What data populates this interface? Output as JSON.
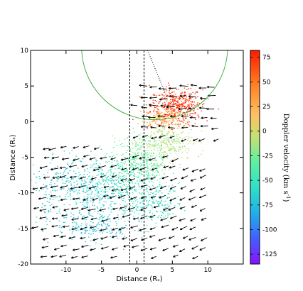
{
  "chart_data": {
    "type": "scatter",
    "xlabel": "Distance (R",
    "xlabel_sub": "*",
    "xlabel_close": ")",
    "ylabel": "Distance (R",
    "ylabel_sub": "*",
    "ylabel_close": ")",
    "xlim": [
      -15,
      15
    ],
    "ylim": [
      -20,
      10
    ],
    "xticks": [
      -10,
      -5,
      0,
      5,
      10
    ],
    "yticks": [
      -20,
      -15,
      -10,
      -5,
      0,
      5,
      10
    ],
    "colorbar": {
      "label": "Doppler velocity (km s",
      "label_sup": "-1",
      "label_close": ")",
      "min": -135,
      "max": 82,
      "ticks": [
        75,
        50,
        25,
        0,
        -25,
        -50,
        -75,
        -100,
        -125
      ]
    },
    "vertical_dashed_lines_x": [
      -1,
      1
    ],
    "circle": {
      "cx": 2.5,
      "cy": 10.5,
      "r": 10.3,
      "color": "#3aa63a"
    },
    "dotted_line": {
      "x": [
        1.5,
        4.2
      ],
      "y": [
        10,
        3.5
      ]
    },
    "emission_regions": [
      {
        "cx": 5.5,
        "cy": 2.3,
        "rx": 3.3,
        "ry": 2.3,
        "velocity": 75,
        "n": 420
      },
      {
        "cx": 3.5,
        "cy": 0.6,
        "rx": 2.5,
        "ry": 1.2,
        "velocity": 30,
        "n": 200
      },
      {
        "cx": 4.0,
        "cy": -3.0,
        "rx": 3.5,
        "ry": 2.6,
        "velocity": -10,
        "n": 320
      },
      {
        "cx": 0.5,
        "cy": -5.5,
        "rx": 3.5,
        "ry": 3.0,
        "velocity": -30,
        "n": 320
      },
      {
        "cx": -2.5,
        "cy": -8.5,
        "rx": 5.5,
        "ry": 3.2,
        "velocity": -50,
        "n": 360
      },
      {
        "cx": -8.0,
        "cy": -9.5,
        "rx": 6.5,
        "ry": 3.8,
        "velocity": -70,
        "n": 420
      },
      {
        "cx": -6.0,
        "cy": -14.5,
        "rx": 5.0,
        "ry": 2.2,
        "velocity": -75,
        "n": 200
      },
      {
        "cx": 2.0,
        "cy": -11.5,
        "rx": 3.5,
        "ry": 2.5,
        "velocity": -55,
        "n": 200
      }
    ]
  }
}
